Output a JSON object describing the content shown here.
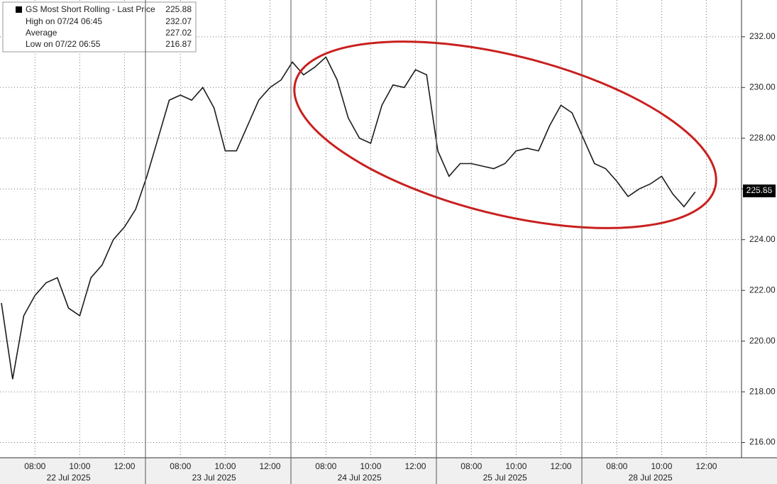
{
  "chart_data": {
    "type": "line",
    "legend": {
      "rows": [
        {
          "label": "GS Most Short Rolling - Last Price",
          "value": 225.88
        },
        {
          "label": "High on 07/24 06:45",
          "value": 232.07
        },
        {
          "label": "Average",
          "value": 227.02
        },
        {
          "label": "Low on 07/22 06:55",
          "value": 216.87
        }
      ]
    },
    "categories": [
      null,
      null,
      null,
      "08:00",
      null,
      null,
      null,
      "10:00",
      null,
      null,
      null,
      "12:00",
      null,
      null,
      null,
      null,
      "08:00",
      null,
      null,
      null,
      "10:00",
      null,
      null,
      null,
      "12:00",
      null,
      null,
      null,
      null,
      "08:00",
      null,
      null,
      null,
      "10:00",
      null,
      null,
      null,
      "12:00",
      null,
      null,
      null,
      null,
      "08:00",
      null,
      null,
      null,
      "10:00",
      null,
      null,
      null,
      "12:00",
      null,
      null,
      null,
      null,
      "08:00",
      null,
      null,
      null,
      "10:00",
      null,
      null,
      null,
      "12:00",
      null
    ],
    "day_labels": [
      "22 Jul 2025",
      "23 Jul 2025",
      "24 Jul 2025",
      "25 Jul 2025",
      "28 Jul 2025"
    ],
    "series": [
      {
        "name": "GS Most Short Rolling",
        "color": "#1c1c1c",
        "values": [
          221.5,
          218.5,
          221,
          221.8,
          222.3,
          222.5,
          221.3,
          221,
          222.5,
          223,
          224,
          224.5,
          225.2,
          226.5,
          228,
          229.5,
          229.7,
          229.5,
          230,
          229.2,
          227.5,
          227.5,
          228.5,
          229.5,
          230,
          230.3,
          231,
          230.5,
          230.8,
          231.2,
          230.3,
          228.8,
          228,
          227.8,
          229.3,
          230.1,
          230,
          230.7,
          230.5,
          227.5,
          226.5,
          227,
          227,
          226.9,
          226.8,
          227,
          227.5,
          227.6,
          227.5,
          228.5,
          229.3,
          229,
          228,
          227,
          226.8,
          226.3,
          225.7,
          226,
          226.2,
          226.5,
          225.8,
          225.3,
          225.88,
          null,
          null
        ]
      }
    ],
    "ylim": [
      215.4,
      233.45
    ],
    "yticks": [
      {
        "value": 216,
        "label": "216.00"
      },
      {
        "value": 218,
        "label": "218.00"
      },
      {
        "value": 220,
        "label": "220.00"
      },
      {
        "value": 222,
        "label": "222.00"
      },
      {
        "value": 224,
        "label": "224.00"
      },
      {
        "value": 226,
        "label": "226.00"
      },
      {
        "value": 228,
        "label": "228.00"
      },
      {
        "value": 230,
        "label": "230.00"
      },
      {
        "value": 232,
        "label": "232.00"
      }
    ],
    "grid": true
  }
}
